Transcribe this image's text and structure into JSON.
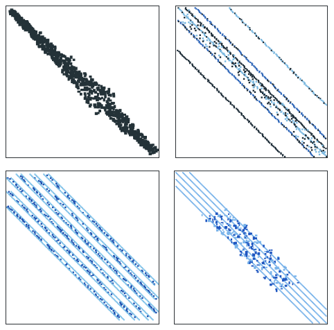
{
  "panels": [
    {
      "id": "panel-1",
      "pattern": "band-dense-diagonal",
      "colors": {
        "main": "#243238"
      },
      "band_widths": [
        6,
        10,
        16,
        22,
        12,
        8
      ]
    },
    {
      "id": "panel-2",
      "pattern": "multi-diagonal",
      "colors": {
        "dark": "#1b2a35",
        "mid": "#2f66b8",
        "light": "#7ab8e0"
      },
      "diagonal_offsets": [
        -0.28,
        -0.08,
        0,
        0.05,
        0.12,
        0.34
      ]
    },
    {
      "id": "panel-3",
      "pattern": "nested-block-bands",
      "colors": {
        "dark": "#1d4fb0",
        "light": "#7cc0e8"
      },
      "diagonal_offsets": [
        -0.22,
        -0.12,
        -0.03,
        0.06,
        0.15,
        0.24
      ]
    },
    {
      "id": "panel-4",
      "pattern": "wide-band-with-center-cluster",
      "colors": {
        "dark": "#1f56c0",
        "light": "#79b3ea"
      },
      "diagonal_offsets": [
        -0.09,
        -0.045,
        0,
        0.045,
        0.09
      ]
    }
  ]
}
